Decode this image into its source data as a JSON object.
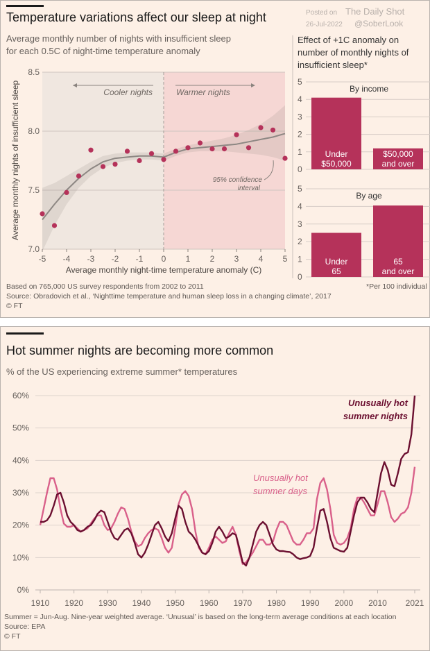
{
  "colors": {
    "background": "#fdf0e6",
    "dot": "#b5325a",
    "bar": "#b5325a",
    "nights": "#6b0f30",
    "days": "#d9608a",
    "fit": "#8d8783",
    "cooler_bg": "#f0e7e0",
    "warmer_bg": "#f6d7d4"
  },
  "watermark": {
    "line1": "Posted on",
    "line2": "The Daily Shot",
    "line3": "26-Jul-2022",
    "line4": "@SoberLook"
  },
  "section1": {
    "title": "Temperature variations affect our sleep at night",
    "subtitle1": "Average monthly number of nights with insufficient sleep",
    "subtitle2": "for each 0.5C of night-time temperature anomaly",
    "footnote1": "Based on 765,000 US survey respondents from 2002 to 2011",
    "footnote2": "Source: Obradovich et al., ‘Nighttime temperature and human sleep loss in a changing climate’, 2017",
    "footnote3": "© FT",
    "right_title1": "Effect of +1C anomaly on",
    "right_title2": "number of monthly nights of",
    "right_title3": "insufficient sleep*",
    "right_footnote": "*Per 100 individual"
  },
  "section2": {
    "title": "Hot summer nights are becoming more common",
    "subtitle": "% of the US experiencing extreme summer* temperatures",
    "footnote1": "Summer = Jun-Aug. Nine-year weighted average.  ‘Unusual’ is based on the long-term average conditions at each location",
    "footnote2": "Source: EPA",
    "footnote3": "© FT"
  },
  "chart_data": [
    {
      "type": "scatter",
      "title": "Average monthly number of nights with insufficient sleep",
      "xlabel": "Average monthly night-time temperature anomaly (C)",
      "ylabel": "Average monthly nights of insufficient sleep",
      "xlim": [
        -5,
        5
      ],
      "ylim": [
        7.0,
        8.5
      ],
      "xticks": [
        "-5",
        "-4",
        "-3",
        "-2",
        "-1",
        "0",
        "1",
        "2",
        "3",
        "4",
        "5"
      ],
      "yticks": [
        "7.0",
        "7.5",
        "8.0",
        "8.5"
      ],
      "annotations": {
        "cooler": "Cooler nights",
        "warmer": "Warmer nights",
        "ci1": "95% confidence",
        "ci2": "interval"
      },
      "x": [
        -5,
        -4.5,
        -4,
        -3.5,
        -3,
        -2.5,
        -2,
        -1.5,
        -1,
        -0.5,
        0,
        0.5,
        1,
        1.5,
        2,
        2.5,
        3,
        3.5,
        4,
        4.5,
        5
      ],
      "y": [
        7.3,
        7.2,
        7.48,
        7.62,
        7.84,
        7.7,
        7.72,
        7.83,
        7.75,
        7.81,
        7.76,
        7.83,
        7.86,
        7.9,
        7.85,
        7.85,
        7.97,
        7.86,
        8.03,
        8.01,
        7.77
      ],
      "fit": {
        "x": [
          -5,
          -4.5,
          -4,
          -3.5,
          -3,
          -2.5,
          -2,
          -1.5,
          -1,
          -0.5,
          0,
          0.5,
          1,
          1.5,
          2,
          2.5,
          3,
          3.5,
          4,
          4.5,
          5
        ],
        "y": [
          7.25,
          7.38,
          7.5,
          7.6,
          7.68,
          7.74,
          7.77,
          7.78,
          7.79,
          7.79,
          7.78,
          7.82,
          7.85,
          7.86,
          7.87,
          7.88,
          7.89,
          7.91,
          7.93,
          7.95,
          7.98
        ],
        "ci_upper": [
          7.52,
          7.56,
          7.62,
          7.68,
          7.74,
          7.79,
          7.81,
          7.82,
          7.82,
          7.82,
          7.81,
          7.85,
          7.88,
          7.9,
          7.92,
          7.94,
          7.97,
          8.01,
          8.06,
          8.13,
          8.22
        ],
        "ci_lower": [
          6.98,
          7.2,
          7.38,
          7.52,
          7.62,
          7.69,
          7.73,
          7.75,
          7.76,
          7.76,
          7.75,
          7.79,
          7.82,
          7.83,
          7.83,
          7.83,
          7.82,
          7.81,
          7.8,
          7.78,
          7.75
        ]
      }
    },
    {
      "type": "bar",
      "title": "By income",
      "ylim": [
        0,
        5
      ],
      "yticks": [
        "0",
        "1",
        "2",
        "3",
        "4",
        "5"
      ],
      "categories": [
        "Under $50,000",
        "$50,000 and over"
      ],
      "labels": [
        [
          "Under",
          "$50,000"
        ],
        [
          "$50,000",
          "and over"
        ]
      ],
      "values": [
        4.1,
        1.2
      ]
    },
    {
      "type": "bar",
      "title": "By age",
      "ylim": [
        0,
        5
      ],
      "yticks": [
        "0",
        "1",
        "2",
        "3",
        "4",
        "5"
      ],
      "categories": [
        "Under 65",
        "65 and over"
      ],
      "labels": [
        [
          "Under",
          "65"
        ],
        [
          "65",
          "and over"
        ]
      ],
      "values": [
        2.5,
        4.05
      ]
    },
    {
      "type": "line",
      "title": "Hot summer nights are becoming more common",
      "ylabel": "% of the US experiencing extreme summer* temperatures",
      "xlim": [
        1910,
        2021
      ],
      "ylim": [
        0,
        60
      ],
      "xticks": [
        "1910",
        "1920",
        "1930",
        "1940",
        "1950",
        "1960",
        "1970",
        "1980",
        "1990",
        "2000",
        "2010",
        "2021"
      ],
      "yticks": [
        "0%",
        "10%",
        "20%",
        "30%",
        "40%",
        "50%",
        "60%"
      ],
      "x_start": 1910,
      "series": [
        {
          "name": "Unusually hot summer nights",
          "label1": "Unusually hot",
          "label2": "summer nights",
          "values": [
            21,
            21,
            21.5,
            23,
            26,
            29.5,
            30,
            27,
            23,
            21,
            20,
            18.5,
            18,
            18.5,
            19.5,
            20,
            21.5,
            23.5,
            24.5,
            24,
            21,
            18,
            16,
            15.5,
            17,
            18.5,
            19,
            17.5,
            14.5,
            11,
            10,
            11.5,
            14,
            17,
            20,
            21,
            19,
            16.5,
            15,
            17.5,
            22,
            26,
            25,
            21,
            18,
            17,
            15.5,
            13.5,
            11.5,
            11,
            12,
            14.5,
            18,
            19.5,
            18,
            16,
            16.5,
            17.5,
            17,
            13,
            8.5,
            7.5,
            10,
            14,
            18,
            20,
            21,
            20,
            17,
            14,
            12.5,
            12,
            12,
            11.8,
            11.7,
            11,
            10,
            9.5,
            9.8,
            10,
            10.5,
            13,
            19,
            24.5,
            25,
            21,
            16,
            13,
            12.5,
            12,
            11.8,
            13,
            18,
            23,
            27,
            28.5,
            28.5,
            27,
            25,
            24,
            30,
            36,
            39.5,
            37,
            32.5,
            32,
            36,
            40.5,
            42,
            42.5,
            48,
            60
          ]
        },
        {
          "name": "Unusually hot summer days",
          "label1": "Unusually hot",
          "label2": "summer days",
          "values": [
            20,
            25,
            30,
            34.5,
            34.5,
            31,
            25,
            20.5,
            19.5,
            19.5,
            20,
            19,
            18,
            18.5,
            19,
            20.5,
            22,
            23,
            23,
            20,
            18.5,
            19,
            21,
            23.5,
            25.5,
            25,
            22,
            18,
            15,
            13.5,
            14,
            16,
            17.5,
            18.5,
            19,
            18.5,
            16,
            13,
            11.5,
            13,
            19,
            26.5,
            29.5,
            30.5,
            29,
            25,
            18,
            13,
            11.5,
            11,
            13,
            15.5,
            16.5,
            15.5,
            14.5,
            15,
            17.5,
            19.5,
            17,
            12,
            8,
            8.5,
            10,
            11.5,
            13.5,
            15.5,
            15.5,
            14,
            14,
            15,
            18.5,
            21,
            21,
            20,
            17.5,
            15,
            14,
            14,
            15.5,
            17.5,
            17.5,
            19,
            28,
            33,
            34.5,
            31,
            25,
            17,
            14.5,
            14,
            14.5,
            16,
            19,
            25,
            28.5,
            28.5,
            27,
            25,
            23,
            23,
            26.5,
            30.5,
            30.5,
            27,
            22.5,
            21,
            22,
            23.5,
            24,
            25.5,
            30,
            38
          ]
        }
      ]
    }
  ]
}
